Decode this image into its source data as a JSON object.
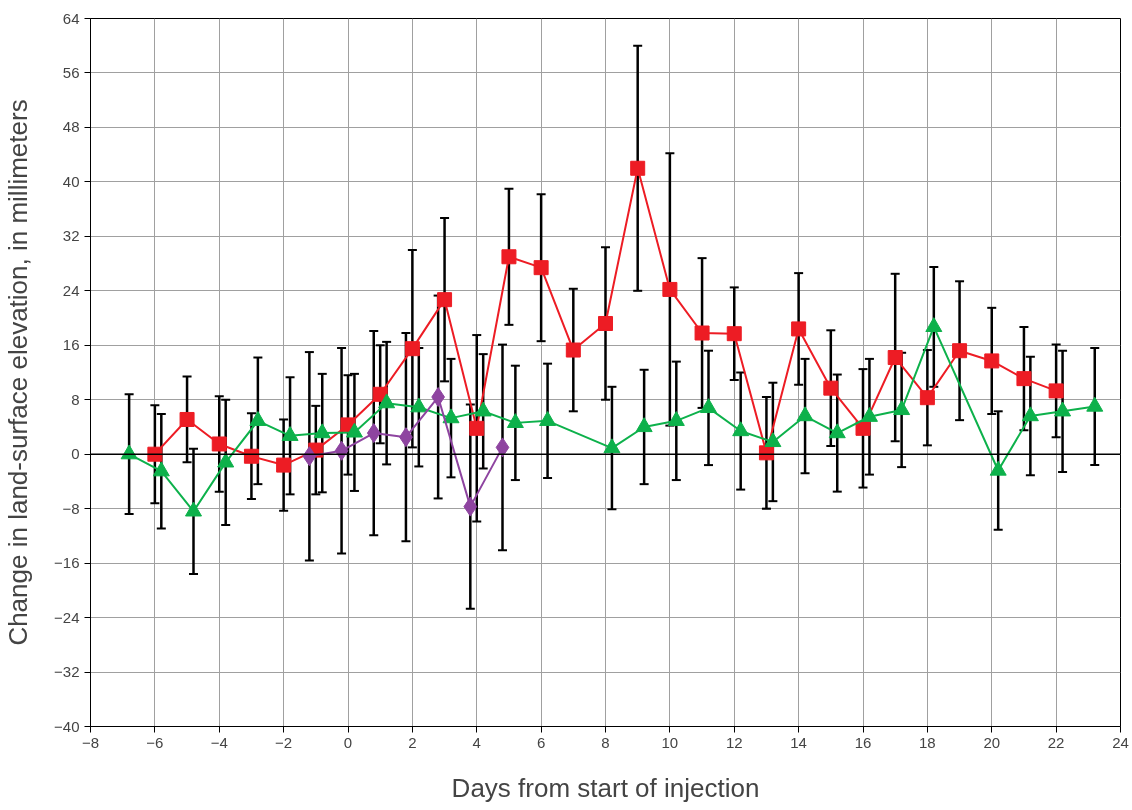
{
  "chart_data": {
    "type": "line",
    "xlabel": "Days from start of injection",
    "ylabel": "Change in land-surface elevation, in millimeters",
    "xlim": [
      -8,
      24
    ],
    "xticks": [
      -8,
      -6,
      -4,
      -2,
      0,
      2,
      4,
      6,
      8,
      10,
      12,
      14,
      16,
      18,
      20,
      22,
      24
    ],
    "ylim": [
      -40,
      64
    ],
    "yticks": [
      -40,
      -32,
      -24,
      -16,
      -8,
      0,
      8,
      16,
      24,
      32,
      40,
      48,
      56,
      64
    ],
    "grid": true,
    "line_style": "solid",
    "ref_lines": [
      {
        "axis": "y",
        "value": 0,
        "color": "#000000"
      }
    ],
    "series": [
      {
        "color": "#ed1c24",
        "marker": "square",
        "x": [
          -6,
          -5,
          -4,
          -3,
          -2,
          -1,
          0,
          1,
          2,
          3,
          4,
          5,
          6,
          7,
          8,
          9,
          10,
          11,
          12,
          13,
          14,
          15,
          16,
          17,
          18,
          19,
          20,
          21,
          22
        ],
        "values": [
          0,
          5.1,
          1.5,
          -0.3,
          -1.6,
          0.6,
          4.3,
          8.8,
          15.5,
          22.7,
          3.8,
          29,
          27.4,
          15.3,
          19.2,
          42,
          24.2,
          17.8,
          17.7,
          0.2,
          18.4,
          9.7,
          3.8,
          14.2,
          8.3,
          15.2,
          13.7,
          11.1,
          9.3
        ],
        "errors": [
          7.2,
          6.3,
          7,
          6.3,
          6.7,
          6.5,
          7.3,
          7.2,
          14.5,
          12,
          13.7,
          10,
          10.8,
          9,
          11.2,
          18,
          20,
          11,
          6.8,
          8.2,
          8.2,
          8.5,
          8.7,
          12.3,
          7,
          10.2,
          7.8,
          7.6,
          6.8
        ]
      },
      {
        "color": "#0db14b",
        "marker": "triangle",
        "x": [
          -6.8,
          -5.8,
          -4.8,
          -3.8,
          -2.8,
          -1.8,
          -0.8,
          0.2,
          1.2,
          2.2,
          3.2,
          4.2,
          5.2,
          6.2,
          8.2,
          9.2,
          10.2,
          11.2,
          12.2,
          13.2,
          14.2,
          15.2,
          16.2,
          17.2,
          18.2,
          20.2,
          21.2,
          22.2,
          23.2
        ],
        "values": [
          0,
          -2.5,
          -8.4,
          -1.2,
          4.9,
          2.7,
          3.1,
          3.2,
          7.5,
          6.9,
          5.3,
          6.3,
          4.6,
          4.9,
          0.9,
          4,
          4.9,
          6.8,
          3.4,
          1.8,
          5.6,
          3.1,
          5.5,
          6.5,
          18.7,
          -2.4,
          5.6,
          6.3,
          7
        ],
        "errors": [
          8.8,
          8.4,
          9.2,
          9.2,
          9.3,
          8.6,
          8.7,
          8.6,
          9,
          8.7,
          8.7,
          8.4,
          8.4,
          8.4,
          9,
          8.4,
          8.7,
          8.4,
          8.6,
          8.7,
          8.4,
          8.6,
          8.5,
          8.4,
          8.8,
          8.7,
          8.7,
          8.9,
          8.6
        ]
      },
      {
        "color": "#8e44a0",
        "marker": "diamond",
        "x": [
          -1.2,
          -0.2,
          0.8,
          1.8,
          2.8,
          3.8,
          4.8
        ],
        "values": [
          -0.3,
          0.5,
          3.1,
          2.5,
          8.4,
          -7.7,
          1.0
        ],
        "errors": [
          15.3,
          15.1,
          15,
          15.3,
          14.9,
          15,
          15.1
        ]
      }
    ]
  }
}
